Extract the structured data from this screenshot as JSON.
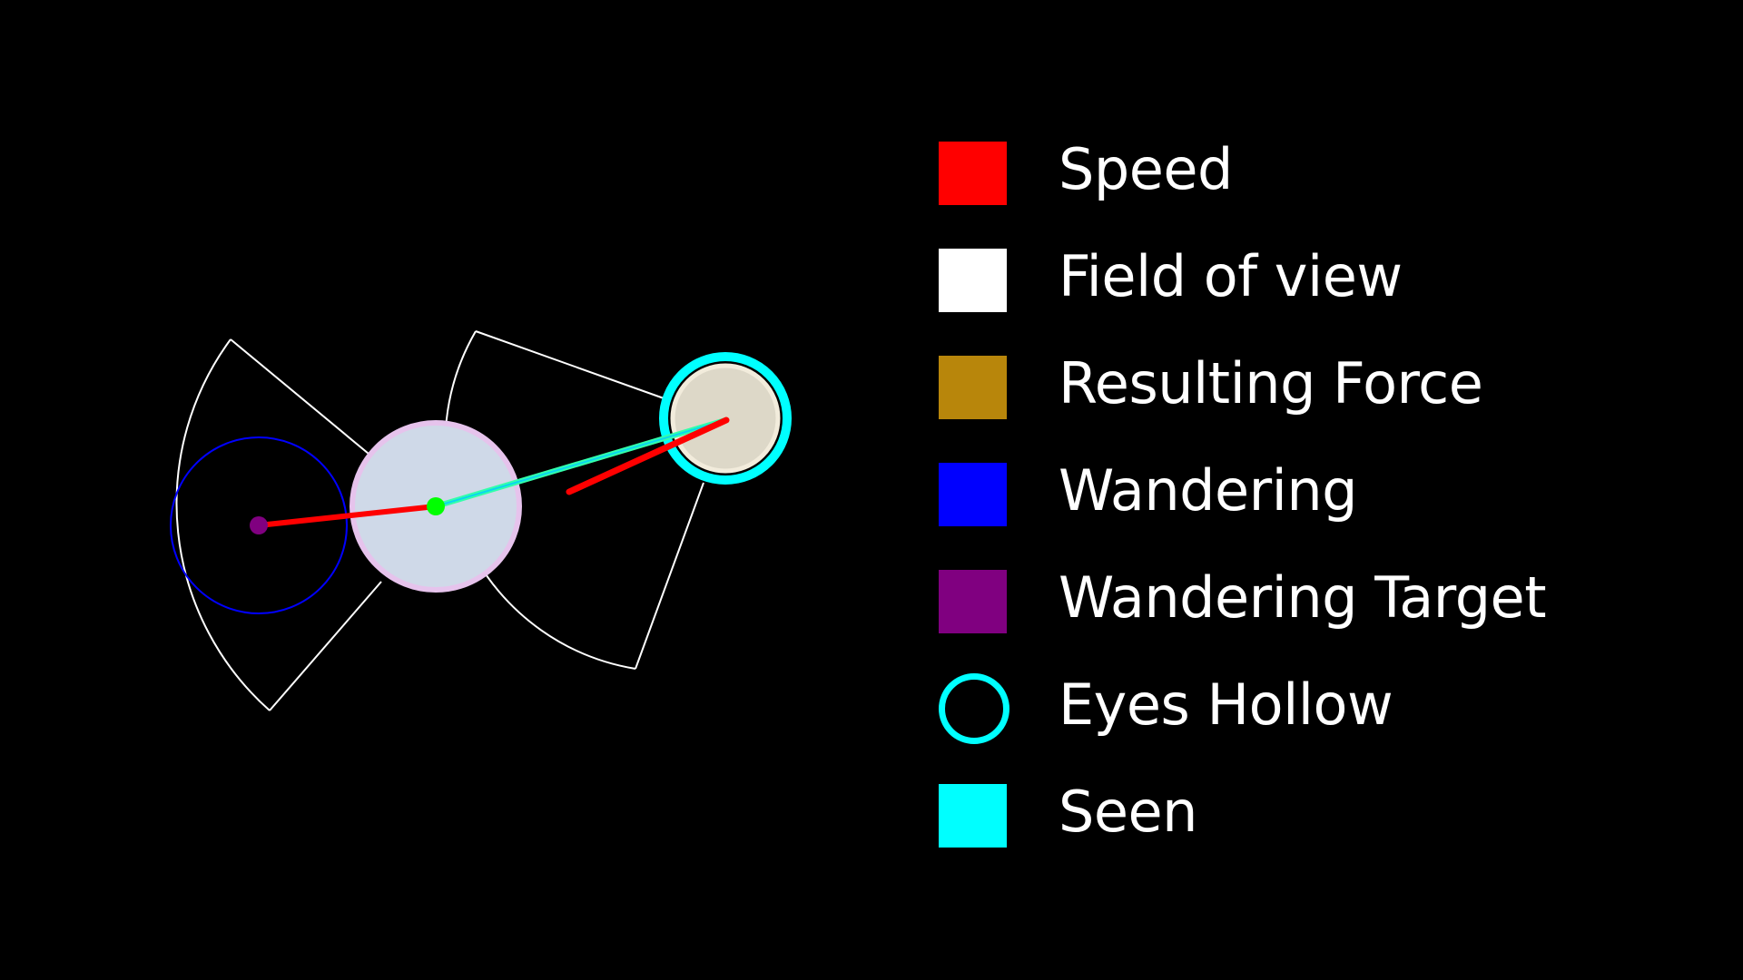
{
  "legend": {
    "items": [
      {
        "label": "Speed",
        "color": "#ff0000",
        "swatch": "filled"
      },
      {
        "label": "Field of view",
        "color": "#ffffff",
        "swatch": "filled"
      },
      {
        "label": "Resulting Force",
        "color": "#b8860b",
        "swatch": "filled"
      },
      {
        "label": "Wandering",
        "color": "#0000ff",
        "swatch": "filled"
      },
      {
        "label": "Wandering Target",
        "color": "#800080",
        "swatch": "filled"
      },
      {
        "label": "Eyes Hollow",
        "color": "#00ffff",
        "swatch": "hollow"
      },
      {
        "label": "Seen",
        "color": "#00ffff",
        "swatch": "filled"
      }
    ]
  },
  "colors": {
    "background": "#000000",
    "speed": "#ff0000",
    "field_of_view": "#ffffff",
    "wandering": "#0000ff",
    "wandering_target": "#800080",
    "eyes_hollow": "#00ffff",
    "agent_fill": "#cfd9e8",
    "agent_border": "#e6c3ec",
    "agent_center": "#00ff00",
    "seen_agent_fill": "#ddd8c8",
    "seen_agent_border": "#f2ecdc",
    "direction_line": "#00ff99"
  }
}
